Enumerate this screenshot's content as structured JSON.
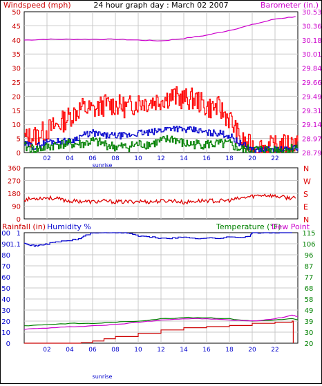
{
  "colors": {
    "wind_gust": "#ff0000",
    "wind_avg": "#0000cc",
    "wind_dir_trace": "#008000",
    "barometer": "#cc00cc",
    "direction": "#dd0000",
    "humidity": "#0000cc",
    "temperature": "#008000",
    "dewpoint": "#cc00cc",
    "rainfall": "#cc0000",
    "grid": "#c8c8c8",
    "axis_label_left": "#cc0000",
    "axis_label_blue": "#0000cc",
    "axis_label_right_barometer": "#cc00cc"
  },
  "labels": {
    "title": "24 hour graph day : March 02 2007",
    "windspeed": "Windspeed (mph)",
    "barometer": "Barometer (in.)",
    "rainfall": "Rainfall (in)",
    "humidity": "Humidity %",
    "temperature": "Temperature (°F)",
    "dewpoint": "Dew Point",
    "sunrise_top": "sunrise",
    "sunrise_bottom": "sunrise"
  },
  "chart_data": [
    {
      "type": "line",
      "name": "wind-barometer",
      "x_ticks": [
        "02",
        "04",
        "06",
        "08",
        "10",
        "12",
        "14",
        "16",
        "18",
        "20",
        "22"
      ],
      "xlim": [
        0,
        24
      ],
      "ylim": [
        0,
        50
      ],
      "y_ticks_left": [
        "50",
        "45",
        "40",
        "35",
        "30",
        "25",
        "20",
        "15",
        "10",
        "5",
        "0"
      ],
      "y_ticks_right": [
        "30.53",
        "30.36",
        "30.18",
        "30.01",
        "29.84",
        "29.66",
        "29.49",
        "29.31",
        "29.14",
        "28.97",
        "28.79"
      ],
      "ylim_right": [
        28.79,
        30.53
      ],
      "grid": true,
      "series": [
        {
          "key": "gust",
          "x": [
            0,
            1,
            2,
            3,
            4,
            5,
            6,
            7,
            8,
            9,
            10,
            11,
            12,
            13,
            14,
            15,
            16,
            17,
            18,
            19,
            20,
            21,
            22,
            23,
            24
          ],
          "values": [
            5,
            6,
            8,
            10,
            13,
            16,
            15,
            17,
            17,
            16,
            18,
            18,
            19,
            20,
            19,
            19,
            16,
            16,
            12,
            4,
            2,
            2,
            2,
            3,
            4
          ]
        },
        {
          "key": "avg",
          "x": [
            0,
            1,
            2,
            3,
            4,
            5,
            6,
            7,
            8,
            9,
            10,
            11,
            12,
            13,
            14,
            15,
            16,
            17,
            18,
            19,
            20,
            21,
            22,
            23,
            24
          ],
          "values": [
            3,
            2,
            4,
            4,
            4,
            6,
            7,
            6,
            6,
            6,
            7,
            7,
            8,
            9,
            8,
            8,
            7,
            7,
            6,
            3,
            1,
            1,
            1,
            1,
            2
          ]
        },
        {
          "key": "dirtrace",
          "x": [
            0,
            1,
            2,
            3,
            4,
            5,
            6,
            7,
            8,
            9,
            10,
            11,
            12,
            13,
            14,
            15,
            16,
            17,
            18,
            19,
            20,
            21,
            22,
            23,
            24
          ],
          "values": [
            2,
            1,
            2,
            3,
            3,
            3,
            4,
            3,
            2,
            2,
            3,
            3,
            4,
            5,
            3,
            3,
            3,
            3,
            3,
            1,
            1,
            1,
            1,
            1,
            2
          ]
        },
        {
          "key": "barometer",
          "x": [
            0,
            2,
            4,
            6,
            8,
            10,
            12,
            14,
            16,
            18,
            20,
            22,
            23.8
          ],
          "values": [
            30.18,
            30.19,
            30.19,
            30.19,
            30.19,
            30.18,
            30.17,
            30.2,
            30.24,
            30.3,
            30.37,
            30.44,
            30.47
          ]
        }
      ]
    },
    {
      "type": "line",
      "name": "wind-direction",
      "xlim": [
        0,
        24
      ],
      "ylim": [
        0,
        360
      ],
      "y_ticks": [
        "360",
        "270",
        "180",
        "90",
        "0"
      ],
      "compass": [
        "N",
        "W",
        "S",
        "E",
        "N"
      ],
      "grid": true,
      "series": [
        {
          "key": "direction",
          "x": [
            0,
            1,
            2,
            3,
            4,
            5,
            6,
            7,
            8,
            9,
            10,
            11,
            12,
            13,
            14,
            15,
            16,
            17,
            18,
            19,
            20,
            21,
            22,
            23,
            23.8
          ],
          "values": [
            135,
            145,
            150,
            140,
            125,
            125,
            120,
            125,
            120,
            120,
            125,
            120,
            125,
            130,
            115,
            125,
            130,
            125,
            130,
            145,
            160,
            170,
            160,
            150,
            145
          ]
        }
      ]
    },
    {
      "type": "line",
      "name": "humidity-temperature-rain",
      "x_ticks": [
        "02",
        "04",
        "06",
        "08",
        "10",
        "12",
        "14",
        "16",
        "18",
        "20",
        "22"
      ],
      "xlim": [
        0,
        24
      ],
      "ylim": [
        0,
        100
      ],
      "y_ticks_humidity": [
        "100",
        "90",
        "80",
        "70",
        "60",
        "50",
        "40",
        "30",
        "20",
        "10",
        "0"
      ],
      "y_ticks_rainfall": [
        "1",
        "1.1",
        "",
        "",
        "",
        "",
        "",
        "",
        "",
        "",
        ""
      ],
      "y_ticks_right": [
        "115",
        "106",
        "96",
        "87",
        "77",
        "68",
        "58",
        "49",
        "39",
        "30",
        "20"
      ],
      "ylim_right": [
        20,
        115
      ],
      "grid": true,
      "series": [
        {
          "key": "humidity",
          "x": [
            0,
            0.5,
            1,
            1.5,
            2,
            3,
            4,
            5,
            5.2,
            6,
            7,
            8,
            9,
            10,
            11,
            12,
            13,
            14,
            15,
            16,
            17,
            18,
            19,
            19.8,
            20,
            21,
            22,
            23.5
          ],
          "values": [
            91,
            89,
            88,
            89,
            90,
            92,
            93,
            95,
            97,
            100,
            100,
            100,
            100,
            97,
            96,
            95,
            95,
            96,
            95,
            95,
            95,
            96,
            96,
            97,
            100,
            100,
            100,
            100
          ]
        },
        {
          "key": "temperature",
          "x": [
            0,
            2,
            4,
            6,
            8,
            10,
            12,
            14,
            16,
            18,
            20,
            22,
            23.5,
            24
          ],
          "values": [
            35,
            36,
            37,
            37,
            38,
            39,
            41,
            42,
            42,
            41,
            39,
            40,
            41,
            40
          ]
        },
        {
          "key": "dewpoint",
          "x": [
            0,
            2,
            4,
            6,
            8,
            10,
            12,
            14,
            16,
            18,
            20,
            22,
            23.5,
            24
          ],
          "values": [
            32,
            33,
            34,
            35,
            36,
            38,
            40,
            41,
            41,
            40,
            39,
            41,
            44,
            43
          ]
        },
        {
          "key": "rainfall",
          "x": [
            0,
            2,
            4,
            5,
            6,
            7,
            8,
            10,
            12,
            14,
            16,
            18,
            20,
            22,
            23.5,
            23.6
          ],
          "values": [
            0,
            0,
            0,
            0.5,
            2,
            4,
            6,
            9,
            12,
            14,
            15,
            16,
            18,
            19,
            20,
            0
          ]
        }
      ]
    }
  ]
}
